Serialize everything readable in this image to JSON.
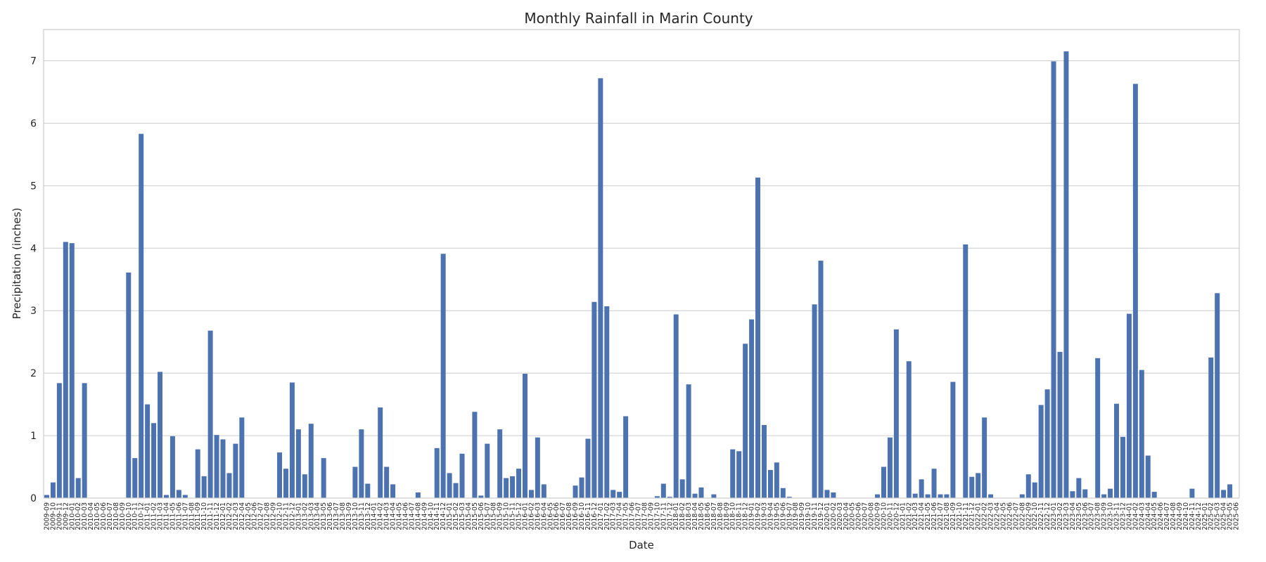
{
  "chart_data": {
    "type": "bar",
    "title": "Monthly Rainfall in Marin County",
    "xlabel": "Date",
    "ylabel": "Precipitation (inches)",
    "ylim": [
      0,
      7.5
    ],
    "yticks": [
      0,
      1,
      2,
      3,
      4,
      5,
      6,
      7
    ],
    "grid": true,
    "bar_color": "#4c72b0",
    "categories": [
      "2009-09",
      "2009-10",
      "2009-11",
      "2009-12",
      "2010-01",
      "2010-02",
      "2010-03",
      "2010-04",
      "2010-05",
      "2010-06",
      "2010-07",
      "2010-08",
      "2010-09",
      "2010-10",
      "2010-11",
      "2010-12",
      "2011-01",
      "2011-02",
      "2011-03",
      "2011-04",
      "2011-05",
      "2011-06",
      "2011-07",
      "2011-08",
      "2011-09",
      "2011-10",
      "2011-11",
      "2011-12",
      "2012-01",
      "2012-02",
      "2012-03",
      "2012-04",
      "2012-05",
      "2012-06",
      "2012-07",
      "2012-08",
      "2012-09",
      "2012-10",
      "2012-11",
      "2012-12",
      "2013-01",
      "2013-02",
      "2013-03",
      "2013-04",
      "2013-05",
      "2013-06",
      "2013-07",
      "2013-08",
      "2013-09",
      "2013-10",
      "2013-11",
      "2013-12",
      "2014-01",
      "2014-02",
      "2014-03",
      "2014-04",
      "2014-05",
      "2014-06",
      "2014-07",
      "2014-08",
      "2014-09",
      "2014-10",
      "2014-11",
      "2014-12",
      "2015-01",
      "2015-02",
      "2015-03",
      "2015-04",
      "2015-05",
      "2015-06",
      "2015-07",
      "2015-08",
      "2015-09",
      "2015-10",
      "2015-11",
      "2015-12",
      "2016-01",
      "2016-02",
      "2016-03",
      "2016-04",
      "2016-05",
      "2016-06",
      "2016-07",
      "2016-08",
      "2016-09",
      "2016-10",
      "2016-11",
      "2016-12",
      "2017-01",
      "2017-02",
      "2017-03",
      "2017-04",
      "2017-05",
      "2017-06",
      "2017-07",
      "2017-08",
      "2017-09",
      "2017-10",
      "2017-11",
      "2017-12",
      "2018-01",
      "2018-02",
      "2018-03",
      "2018-04",
      "2018-05",
      "2018-06",
      "2018-07",
      "2018-08",
      "2018-09",
      "2018-10",
      "2018-11",
      "2018-12",
      "2019-01",
      "2019-02",
      "2019-03",
      "2019-04",
      "2019-05",
      "2019-06",
      "2019-07",
      "2019-08",
      "2019-09",
      "2019-10",
      "2019-11",
      "2019-12",
      "2020-01",
      "2020-02",
      "2020-03",
      "2020-04",
      "2020-05",
      "2020-06",
      "2020-07",
      "2020-08",
      "2020-09",
      "2020-10",
      "2020-11",
      "2020-12",
      "2021-01",
      "2021-02",
      "2021-03",
      "2021-04",
      "2021-05",
      "2021-06",
      "2021-07",
      "2021-08",
      "2021-09",
      "2021-10",
      "2021-11",
      "2021-12",
      "2022-01",
      "2022-02",
      "2022-03",
      "2022-04",
      "2022-05",
      "2022-06",
      "2022-07",
      "2022-08",
      "2022-09",
      "2022-10",
      "2022-11",
      "2022-12",
      "2023-01",
      "2023-02",
      "2023-03",
      "2023-04",
      "2023-05",
      "2023-06",
      "2023-07",
      "2023-08",
      "2023-09",
      "2023-10",
      "2023-11",
      "2023-12",
      "2024-01",
      "2024-02",
      "2024-03",
      "2024-04",
      "2024-05",
      "2024-06",
      "2024-07",
      "2024-08",
      "2024-09",
      "2024-10",
      "2024-11",
      "2024-12",
      "2025-01",
      "2025-02",
      "2025-03",
      "2025-04",
      "2025-05",
      "2025-06"
    ],
    "values": [
      0.05,
      0.25,
      1.84,
      4.1,
      4.08,
      0.32,
      1.84,
      0,
      0,
      0,
      0,
      0,
      0,
      3.61,
      0.64,
      5.83,
      1.5,
      1.2,
      2.02,
      0.05,
      0.99,
      0.13,
      0.05,
      0,
      0.78,
      0.35,
      2.68,
      1.01,
      0.94,
      0.4,
      0.87,
      1.29,
      0,
      0,
      0,
      0,
      0,
      0.73,
      0.47,
      1.85,
      1.1,
      0.38,
      1.19,
      0,
      0.64,
      0,
      0,
      0,
      0,
      0.5,
      1.1,
      0.23,
      0,
      1.45,
      0.5,
      0.22,
      0,
      0,
      0,
      0.09,
      0,
      0,
      0.8,
      3.91,
      0.4,
      0.24,
      0.71,
      0,
      1.38,
      0.04,
      0.87,
      0,
      1.1,
      0.32,
      0.35,
      0.47,
      1.99,
      0.13,
      0.97,
      0.22,
      0,
      0,
      0,
      0,
      0.2,
      0.33,
      0.95,
      3.14,
      6.72,
      3.07,
      0.13,
      0.1,
      1.31,
      0,
      0,
      0,
      0,
      0.03,
      0.23,
      0.02,
      2.94,
      0.3,
      1.82,
      0.07,
      0.17,
      0,
      0.06,
      0,
      0,
      0.78,
      0.75,
      2.47,
      2.86,
      5.13,
      1.17,
      0.45,
      0.57,
      0.16,
      0.02,
      0,
      0,
      0,
      3.1,
      3.8,
      0.13,
      0.09,
      0,
      0,
      0,
      0,
      0,
      0,
      0.06,
      0.5,
      0.97,
      2.7,
      0,
      2.19,
      0.07,
      0.3,
      0.06,
      0.47,
      0.06,
      0.06,
      1.86,
      0,
      4.06,
      0.34,
      0.4,
      1.29,
      0.06,
      0,
      0,
      0,
      0,
      0.06,
      0.38,
      0.25,
      1.49,
      1.74,
      6.99,
      2.34,
      7.15,
      0.11,
      0.32,
      0.14,
      0,
      2.24,
      0.06,
      0.15,
      1.51,
      0.98,
      2.95,
      6.63,
      2.05,
      0.68,
      0.1,
      0,
      0,
      0,
      0,
      0,
      0.15,
      0,
      0,
      2.25,
      3.28,
      0.13,
      0.22,
      0
    ]
  }
}
